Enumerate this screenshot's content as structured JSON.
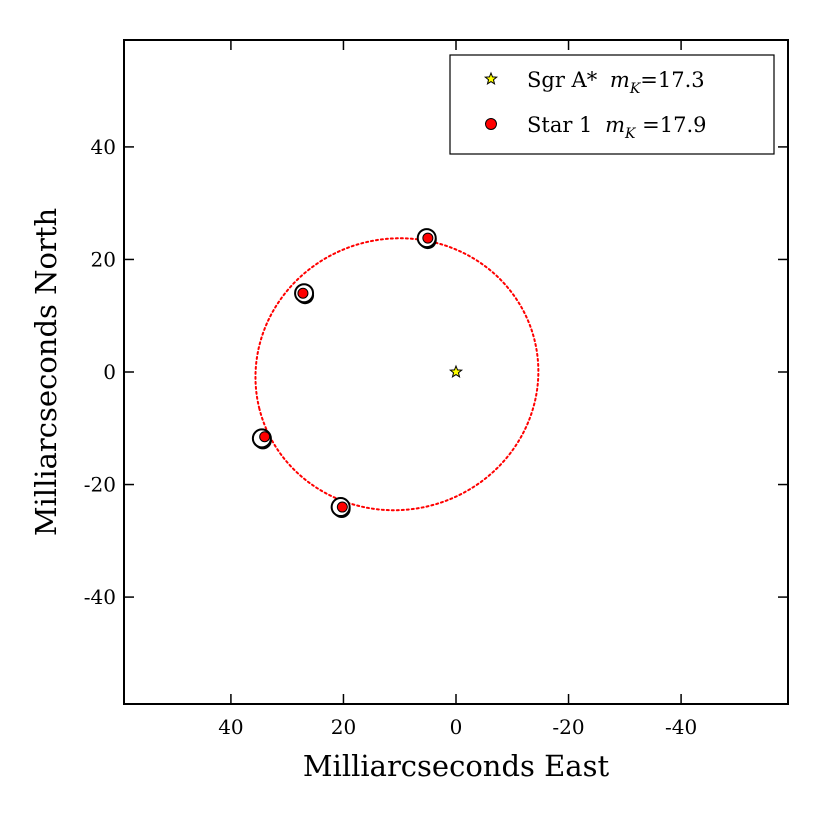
{
  "chart_data": {
    "type": "scatter",
    "title": "",
    "xlabel": "Milliarcseconds East",
    "ylabel": "Milliarcseconds North",
    "xlim": [
      59,
      -59
    ],
    "ylim": [
      -59,
      59
    ],
    "xticks": [
      40,
      20,
      0,
      -20,
      -40
    ],
    "yticks": [
      40,
      20,
      0,
      -20,
      -40
    ],
    "tick_labels_x": [
      "40",
      "20",
      "0",
      "-20",
      "-40"
    ],
    "tick_labels_y": [
      "40",
      "20",
      "0",
      "-20",
      "-40"
    ],
    "grid": false,
    "legend_position": "top-right",
    "legend": [
      {
        "name": "Sgr A*",
        "mag_symbol": "m",
        "mag_subscript": "K",
        "mag_value": "=17.3",
        "marker": "star",
        "color": "#ffff00"
      },
      {
        "name": "Star 1",
        "mag_symbol": "m",
        "mag_subscript": "K",
        "mag_value": " =17.9",
        "marker": "circle",
        "color": "#ff0000"
      }
    ],
    "series": [
      {
        "name": "Sgr A*",
        "marker": "star",
        "color": "#ffff00",
        "points": [
          {
            "x": 0,
            "y": 0
          }
        ]
      },
      {
        "name": "Star 1 observed",
        "marker": "open-circle",
        "color": "#000000",
        "points": [
          {
            "x": 5.2,
            "y": 23.8
          },
          {
            "x": 27.0,
            "y": 14.0
          },
          {
            "x": 34.5,
            "y": -11.8
          },
          {
            "x": 20.5,
            "y": -24.0
          }
        ]
      },
      {
        "name": "Star 1 model",
        "marker": "circle",
        "color": "#ff0000",
        "points": [
          {
            "x": 5.0,
            "y": 23.8
          },
          {
            "x": 27.2,
            "y": 14.0
          },
          {
            "x": 34.0,
            "y": -11.5
          },
          {
            "x": 20.2,
            "y": -24.0
          }
        ]
      },
      {
        "name": "Orbit",
        "marker": "dotted-line",
        "color": "#ff0000",
        "ellipse": {
          "center_x": 10.5,
          "center_y": -0.4,
          "semi_major": 25.2,
          "semi_minor": 24.1,
          "angle_deg": -14
        }
      }
    ]
  }
}
